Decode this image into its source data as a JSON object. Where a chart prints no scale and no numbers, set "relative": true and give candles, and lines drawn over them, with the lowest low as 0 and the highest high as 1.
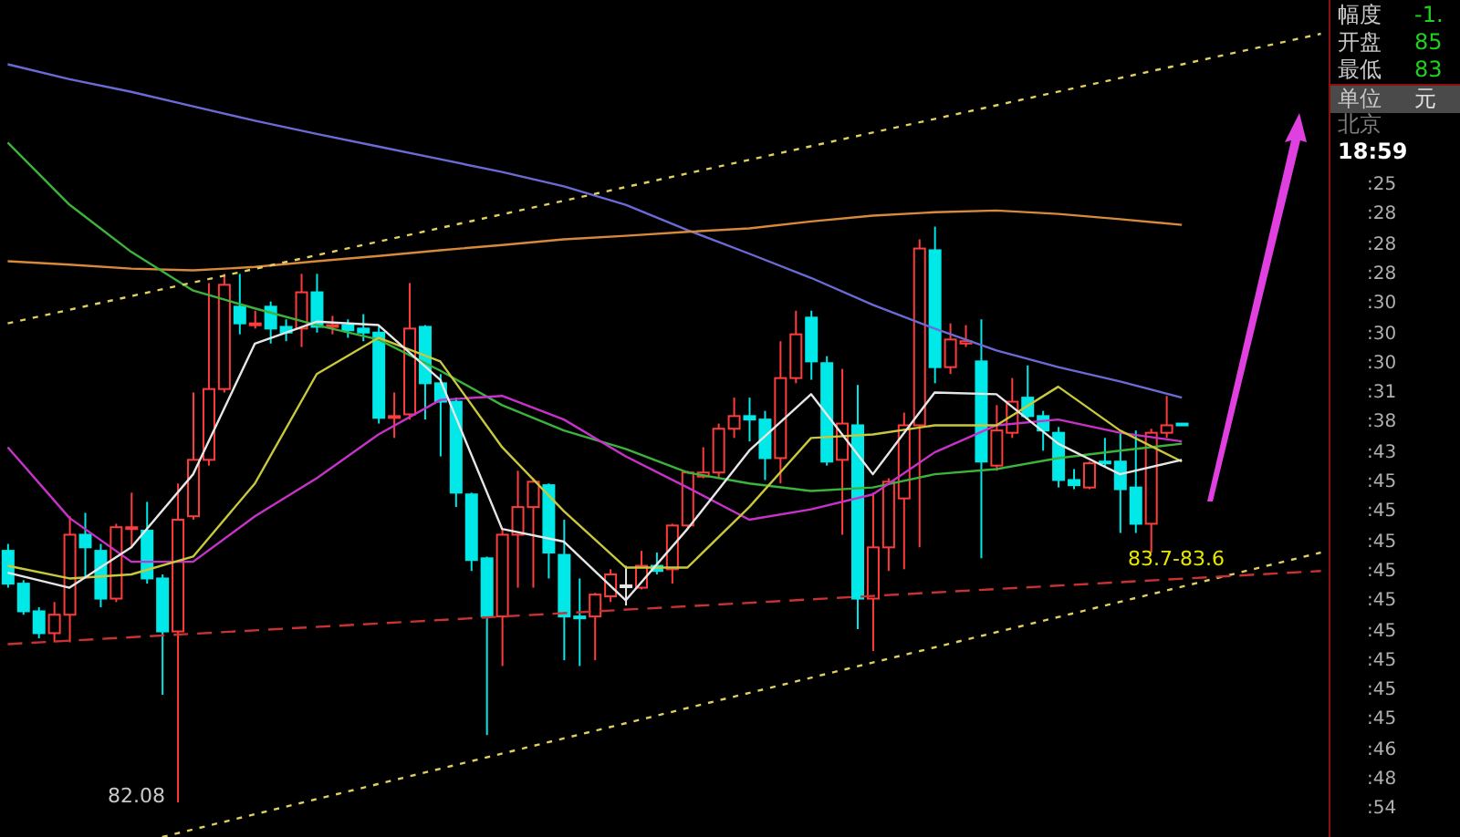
{
  "chart_data": {
    "type": "candlestick",
    "relative": true,
    "categories": [
      null,
      null,
      null,
      null,
      null,
      null,
      null,
      null,
      null,
      null,
      null,
      null,
      null,
      null,
      null,
      null,
      null,
      null,
      null,
      null,
      null,
      null,
      null,
      null,
      null,
      null,
      null,
      null,
      null,
      null,
      null,
      null,
      null,
      null,
      null,
      null,
      null,
      null,
      null,
      null,
      null,
      null,
      null,
      null,
      null,
      null,
      null,
      null,
      null,
      null,
      null,
      null,
      null,
      null,
      null,
      null,
      null,
      null,
      null,
      null,
      null,
      null,
      null,
      null,
      null,
      null,
      null,
      null,
      null,
      null,
      null,
      null,
      null,
      null,
      null,
      null,
      null,
      null,
      null,
      null,
      null,
      null,
      null,
      null,
      null,
      null
    ],
    "colors": [
      "#00e8e8",
      "#00e8e8",
      "#00e8e8",
      "#ff3c3c",
      "#ff3c3c",
      "#00e8e8",
      "#00e8e8",
      "#ff3c3c",
      "#ff3c3c",
      "#00e8e8",
      "#00e8e8",
      "#ff3c3c",
      "#ff3c3c",
      "#ff3c3c",
      "#ff3c3c",
      "#00e8e8",
      "#ff3c3c",
      "#00e8e8",
      "#00e8e8",
      "#ff3c3c",
      "#00e8e8",
      "#ff3c3c",
      "#00e8e8",
      "#00e8e8",
      "#00e8e8",
      "#ff3c3c",
      "#ff3c3c",
      "#00e8e8",
      "#00e8e8",
      "#00e8e8",
      "#00e8e8",
      "#00e8e8",
      "#ff3c3c",
      "#ff3c3c",
      "#ff3c3c",
      "#00e8e8",
      "#00e8e8",
      "#00e8e8",
      "#ff3c3c",
      "#ff3c3c",
      "#e6e6e6",
      "#ff3c3c",
      "#00e8e8",
      "#ff3c3c",
      "#ff3c3c",
      "#ff3c3c",
      "#ff3c3c",
      "#ff3c3c",
      "#00e8e8",
      "#00e8e8",
      "#ff3c3c",
      "#ff3c3c",
      "#00e8e8",
      "#00e8e8",
      "#ff3c3c",
      "#00e8e8",
      "#ff3c3c",
      "#ff3c3c",
      "#ff3c3c",
      "#ff3c3c",
      "#00e8e8",
      "#ff3c3c",
      "#ff3c3c",
      "#00e8e8",
      "#ff3c3c",
      "#ff3c3c",
      "#00e8e8",
      "#00e8e8",
      "#00e8e8",
      "#00e8e8",
      "#ff3c3c",
      "#00e8e8",
      "#00e8e8",
      "#00e8e8",
      "#ff3c3c",
      "#ff3c3c",
      "#00e8e8",
      null,
      null,
      null,
      null,
      null,
      null,
      null,
      null,
      null
    ],
    "ohlc": [
      [
        0.437,
        0.449,
        0.373,
        0.38
      ],
      [
        0.38,
        0.386,
        0.326,
        0.332
      ],
      [
        0.332,
        0.339,
        0.285,
        0.294
      ],
      [
        0.294,
        0.348,
        0.278,
        0.326
      ],
      [
        0.326,
        0.497,
        0.278,
        0.465
      ],
      [
        0.465,
        0.503,
        0.392,
        0.443
      ],
      [
        0.437,
        0.449,
        0.339,
        0.354
      ],
      [
        0.354,
        0.484,
        0.348,
        0.478
      ],
      [
        0.475,
        0.538,
        0.443,
        0.478
      ],
      [
        0.472,
        0.522,
        0.38,
        0.389
      ],
      [
        0.389,
        0.396,
        0.187,
        0.297
      ],
      [
        0.297,
        0.554,
        0,
        0.491
      ],
      [
        0.497,
        0.712,
        0.491,
        0.595
      ],
      [
        0.595,
        0.902,
        0.585,
        0.718
      ],
      [
        0.718,
        0.918,
        0.712,
        0.899
      ],
      [
        0.861,
        0.918,
        0.813,
        0.832
      ],
      [
        0.829,
        0.854,
        0.823,
        0.832
      ],
      [
        0.861,
        0.87,
        0.797,
        0.823
      ],
      [
        0.826,
        0.839,
        0.801,
        0.816
      ],
      [
        0.823,
        0.918,
        0.791,
        0.886
      ],
      [
        0.886,
        0.918,
        0.816,
        0.826
      ],
      [
        0.826,
        0.845,
        0.813,
        0.829
      ],
      [
        0.829,
        0.839,
        0.807,
        0.82
      ],
      [
        0.823,
        0.848,
        0.801,
        0.816
      ],
      [
        0.816,
        0.829,
        0.658,
        0.668
      ],
      [
        0.668,
        0.712,
        0.633,
        0.671
      ],
      [
        0.674,
        0.902,
        0.665,
        0.823
      ],
      [
        0.826,
        0.829,
        0.665,
        0.728
      ],
      [
        0.728,
        0.744,
        0.601,
        0.696
      ],
      [
        0.696,
        0.703,
        0.513,
        0.538
      ],
      [
        0.535,
        0.538,
        0.402,
        0.421
      ],
      [
        0.424,
        0.427,
        0.117,
        0.323
      ],
      [
        0.323,
        0.475,
        0.237,
        0.465
      ],
      [
        0.465,
        0.576,
        0.373,
        0.513
      ],
      [
        0.513,
        0.563,
        0.373,
        0.557
      ],
      [
        0.551,
        0.554,
        0.389,
        0.434
      ],
      [
        0.43,
        0.491,
        0.247,
        0.323
      ],
      [
        0.323,
        0.389,
        0.237,
        0.32
      ],
      [
        0.323,
        0.364,
        0.247,
        0.361
      ],
      [
        0.358,
        0.405,
        0.348,
        0.396
      ],
      [
        0.377,
        0.411,
        0.342,
        0.377
      ],
      [
        0.373,
        0.437,
        0.37,
        0.411
      ],
      [
        0.411,
        0.434,
        0.396,
        0.402
      ],
      [
        0.405,
        0.484,
        0.38,
        0.481
      ],
      [
        0.481,
        0.576,
        0.475,
        0.573
      ],
      [
        0.566,
        0.617,
        0.563,
        0.573
      ],
      [
        0.573,
        0.658,
        0.563,
        0.649
      ],
      [
        0.649,
        0.703,
        0.633,
        0.671
      ],
      [
        0.671,
        0.703,
        0.627,
        0.665
      ],
      [
        0.665,
        0.68,
        0.56,
        0.598
      ],
      [
        0.598,
        0.801,
        0.554,
        0.737
      ],
      [
        0.737,
        0.854,
        0.728,
        0.813
      ],
      [
        0.842,
        0.854,
        0.734,
        0.766
      ],
      [
        0.763,
        0.775,
        0.585,
        0.592
      ],
      [
        0.595,
        0.753,
        0.465,
        0.658
      ],
      [
        0.655,
        0.725,
        0.301,
        0.354
      ],
      [
        0.354,
        0.538,
        0.263,
        0.443
      ],
      [
        0.443,
        0.563,
        0.402,
        0.557
      ],
      [
        0.528,
        0.677,
        0.405,
        0.655
      ],
      [
        0.655,
        0.978,
        0.443,
        0.962
      ],
      [
        0.959,
        1,
        0.728,
        0.756
      ],
      [
        0.756,
        0.832,
        0.744,
        0.804
      ],
      [
        0.797,
        0.829,
        0.791,
        0.801
      ],
      [
        0.766,
        0.839,
        0.424,
        0.592
      ],
      [
        0.585,
        0.69,
        0.576,
        0.646
      ],
      [
        0.642,
        0.737,
        0.633,
        0.696
      ],
      [
        0.703,
        0.759,
        0.665,
        0.671
      ],
      [
        0.671,
        0.68,
        0.611,
        0.646
      ],
      [
        0.642,
        0.652,
        0.547,
        0.56
      ],
      [
        0.56,
        0.579,
        0.544,
        0.551
      ],
      [
        0.547,
        0.592,
        0.544,
        0.589
      ],
      [
        0.592,
        0.633,
        0.582,
        0.589
      ],
      [
        0.592,
        0.642,
        0.468,
        0.544
      ],
      [
        0.547,
        0.646,
        0.468,
        0.484
      ],
      [
        0.484,
        0.649,
        0.434,
        0.642
      ],
      [
        0.642,
        0.706,
        0.633,
        0.655
      ],
      [
        0.658,
        0.658,
        0.655,
        0.655
      ],
      null,
      null,
      null,
      null,
      null,
      null,
      null,
      null,
      null
    ],
    "series": [
      {
        "type": "line",
        "color": "#6b6bd6",
        "values": [
          1.282,
          null,
          null,
          null,
          1.256,
          null,
          null,
          null,
          1.234,
          null,
          null,
          null,
          1.209,
          null,
          null,
          null,
          1.184,
          null,
          null,
          null,
          1.161,
          null,
          null,
          null,
          1.139,
          null,
          null,
          null,
          1.117,
          null,
          null,
          null,
          1.095,
          null,
          null,
          null,
          1.07,
          null,
          null,
          null,
          1.038,
          null,
          null,
          null,
          0.994,
          null,
          null,
          null,
          0.953,
          null,
          null,
          null,
          0.911,
          null,
          null,
          null,
          0.864,
          null,
          null,
          null,
          0.823,
          null,
          null,
          null,
          0.785,
          null,
          null,
          null,
          0.756,
          null,
          null,
          null,
          0.731,
          null,
          null,
          null,
          0.703,
          null,
          null,
          null,
          null,
          null,
          null,
          null,
          null,
          null
        ]
      },
      {
        "type": "line",
        "color": "#d88a3a",
        "values": [
          0.94,
          null,
          null,
          null,
          0.934,
          null,
          null,
          null,
          0.927,
          null,
          null,
          null,
          0.924,
          null,
          null,
          null,
          0.93,
          null,
          null,
          null,
          0.94,
          null,
          null,
          null,
          0.949,
          null,
          null,
          null,
          0.959,
          null,
          null,
          null,
          0.968,
          null,
          null,
          null,
          0.978,
          null,
          null,
          null,
          0.984,
          null,
          null,
          null,
          0.991,
          null,
          null,
          null,
          0.997,
          null,
          null,
          null,
          1.009,
          null,
          null,
          null,
          1.019,
          null,
          null,
          null,
          1.025,
          null,
          null,
          null,
          1.028,
          null,
          null,
          null,
          1.022,
          null,
          null,
          null,
          1.013,
          null,
          null,
          null,
          1.003,
          null,
          null,
          null,
          null,
          null,
          null,
          null,
          null,
          null
        ]
      },
      {
        "type": "line",
        "color": "#3cb43c",
        "values": [
          1.146,
          null,
          null,
          null,
          1.038,
          null,
          null,
          null,
          0.956,
          null,
          null,
          null,
          0.889,
          null,
          null,
          null,
          0.858,
          null,
          null,
          null,
          0.829,
          null,
          null,
          null,
          0.804,
          null,
          null,
          null,
          0.75,
          null,
          null,
          null,
          0.69,
          null,
          null,
          null,
          0.646,
          null,
          null,
          null,
          0.614,
          null,
          null,
          null,
          0.573,
          null,
          null,
          null,
          0.554,
          null,
          null,
          null,
          0.541,
          null,
          null,
          null,
          0.547,
          null,
          null,
          null,
          0.57,
          null,
          null,
          null,
          0.579,
          null,
          null,
          null,
          0.598,
          null,
          null,
          null,
          0.611,
          null,
          null,
          null,
          0.623,
          null,
          null,
          null,
          null,
          null,
          null,
          null,
          null,
          null
        ]
      },
      {
        "type": "line",
        "color": "#c832c8",
        "values": [
          0.617,
          null,
          null,
          null,
          0.494,
          null,
          null,
          null,
          0.418,
          null,
          null,
          null,
          0.418,
          null,
          null,
          null,
          0.497,
          null,
          null,
          null,
          0.563,
          null,
          null,
          null,
          0.639,
          null,
          null,
          null,
          0.699,
          null,
          null,
          null,
          0.706,
          null,
          null,
          null,
          0.665,
          null,
          null,
          null,
          0.601,
          null,
          null,
          null,
          0.547,
          null,
          null,
          null,
          0.491,
          null,
          null,
          null,
          0.509,
          null,
          null,
          null,
          0.535,
          null,
          null,
          null,
          0.608,
          null,
          null,
          null,
          0.655,
          null,
          null,
          null,
          0.665,
          null,
          null,
          null,
          0.642,
          null,
          null,
          null,
          0.627,
          null,
          null,
          null,
          null,
          null,
          null,
          null,
          null,
          null
        ]
      },
      {
        "type": "line",
        "color": "#c8c83c",
        "values": [
          0.411,
          null,
          null,
          null,
          0.389,
          null,
          null,
          null,
          0.396,
          null,
          null,
          null,
          0.427,
          null,
          null,
          null,
          0.554,
          null,
          null,
          null,
          0.744,
          null,
          null,
          null,
          0.807,
          null,
          null,
          null,
          0.766,
          null,
          null,
          null,
          0.617,
          null,
          null,
          null,
          0.506,
          null,
          null,
          null,
          0.408,
          null,
          null,
          null,
          0.408,
          null,
          null,
          null,
          0.513,
          null,
          null,
          null,
          0.633,
          null,
          null,
          null,
          0.639,
          null,
          null,
          null,
          0.655,
          null,
          null,
          null,
          0.655,
          null,
          null,
          null,
          0.722,
          null,
          null,
          null,
          0.646,
          null,
          null,
          null,
          0.592,
          null,
          null,
          null,
          null,
          null,
          null,
          null,
          null,
          null
        ]
      },
      {
        "type": "line",
        "color": "#e6e6e6",
        "values": [
          0.399,
          null,
          null,
          null,
          0.373,
          null,
          null,
          null,
          0.443,
          null,
          null,
          null,
          0.57,
          null,
          null,
          null,
          0.797,
          null,
          null,
          null,
          0.835,
          null,
          null,
          null,
          0.829,
          null,
          null,
          null,
          0.734,
          null,
          null,
          null,
          0.475,
          null,
          null,
          null,
          0.453,
          null,
          null,
          null,
          0.351,
          null,
          null,
          null,
          0.475,
          null,
          null,
          null,
          0.611,
          null,
          null,
          null,
          0.709,
          null,
          null,
          null,
          0.57,
          null,
          null,
          null,
          0.712,
          null,
          null,
          null,
          0.709,
          null,
          null,
          null,
          0.623,
          null,
          null,
          null,
          0.57,
          null,
          null,
          null,
          0.595,
          null,
          null,
          null,
          null,
          null,
          null,
          null,
          null,
          null
        ]
      },
      {
        "type": "line",
        "color": "#e0d060",
        "line_style": "dotted",
        "values": [
          0.832,
          null,
          null,
          null,
          null,
          null,
          null,
          null,
          null,
          null,
          null,
          null,
          null,
          null,
          null,
          null,
          null,
          null,
          null,
          null,
          null,
          null,
          null,
          null,
          null,
          null,
          null,
          null,
          null,
          null,
          null,
          null,
          null,
          null,
          null,
          null,
          null,
          null,
          null,
          null,
          null,
          null,
          null,
          null,
          null,
          null,
          null,
          null,
          null,
          null,
          null,
          null,
          null,
          null,
          null,
          null,
          null,
          null,
          null,
          null,
          null,
          null,
          null,
          null,
          null,
          null,
          null,
          null,
          null,
          null,
          null,
          null,
          null,
          null,
          null,
          null,
          null,
          null,
          null,
          null,
          null,
          null,
          null,
          null,
          null,
          1.335
        ]
      },
      {
        "type": "line",
        "color": "#e0d060",
        "line_style": "dotted",
        "values": [
          null,
          null,
          null,
          null,
          null,
          null,
          null,
          null,
          null,
          null,
          -0.06,
          null,
          null,
          null,
          null,
          null,
          null,
          null,
          null,
          null,
          null,
          null,
          null,
          null,
          null,
          null,
          null,
          null,
          null,
          null,
          null,
          null,
          null,
          null,
          null,
          null,
          null,
          null,
          null,
          null,
          null,
          null,
          null,
          null,
          null,
          null,
          null,
          null,
          null,
          null,
          null,
          null,
          null,
          null,
          null,
          null,
          null,
          null,
          null,
          null,
          null,
          null,
          null,
          null,
          null,
          null,
          null,
          null,
          null,
          null,
          null,
          null,
          null,
          null,
          null,
          null,
          null,
          null,
          null,
          null,
          null,
          null,
          null,
          null,
          null,
          0.434
        ]
      },
      {
        "type": "line",
        "color": "#c83232",
        "line_style": "dashed",
        "values": [
          0.275,
          null,
          null,
          null,
          null,
          null,
          null,
          null,
          null,
          null,
          null,
          null,
          null,
          null,
          null,
          null,
          null,
          null,
          null,
          null,
          null,
          null,
          null,
          null,
          null,
          null,
          null,
          null,
          null,
          null,
          null,
          null,
          null,
          null,
          null,
          null,
          null,
          null,
          null,
          null,
          null,
          null,
          null,
          null,
          null,
          null,
          null,
          null,
          null,
          null,
          null,
          null,
          null,
          null,
          null,
          null,
          null,
          null,
          null,
          null,
          null,
          null,
          null,
          null,
          null,
          null,
          null,
          null,
          null,
          null,
          null,
          null,
          null,
          null,
          null,
          null,
          null,
          null,
          null,
          null,
          null,
          null,
          null,
          null,
          null,
          0.402
        ]
      }
    ],
    "annotations": [
      "82.08",
      "83.7-83.6",
      "幅度",
      "-1.",
      "开盘",
      "85",
      "最低",
      "83",
      "单位",
      "元",
      "北京",
      "18:59",
      ":25",
      ":28",
      ":28",
      ":28",
      ":30",
      ":30",
      ":30",
      ":31",
      ":38",
      ":43",
      ":45",
      ":45",
      ":45",
      ":45",
      ":45",
      ":45",
      ":45",
      ":45",
      ":45",
      ":46",
      ":48",
      ":54"
    ]
  }
}
